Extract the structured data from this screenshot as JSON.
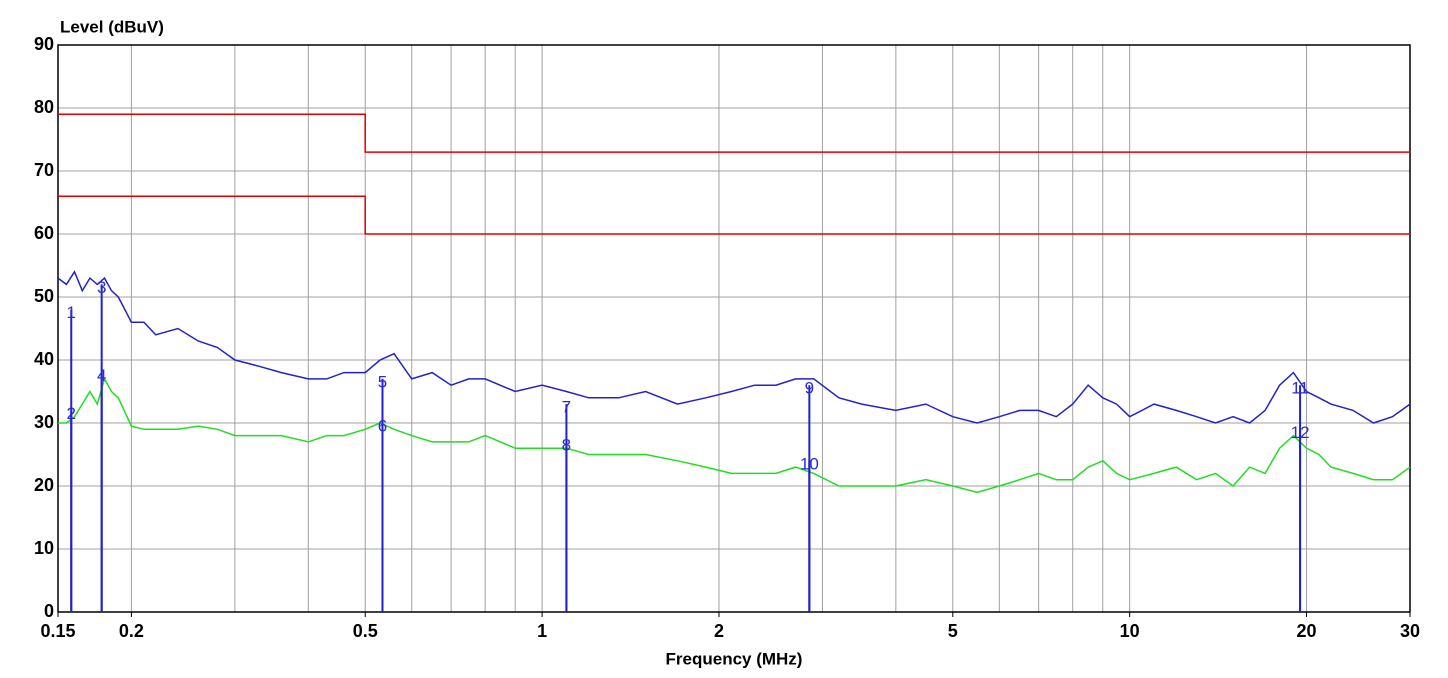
{
  "chart_data": {
    "type": "line",
    "y_label": "Level (dBuV)",
    "x_label": "Frequency (MHz)",
    "xscale": "log",
    "xlim": [
      0.15,
      30
    ],
    "ylim": [
      0,
      90
    ],
    "xticks": [
      0.15,
      0.2,
      0.5,
      1,
      2,
      5,
      10,
      20,
      30
    ],
    "yticks": [
      0,
      10,
      20,
      30,
      40,
      50,
      60,
      70,
      80,
      90
    ],
    "xgrid": [
      0.2,
      0.3,
      0.4,
      0.5,
      0.6,
      0.7,
      0.8,
      0.9,
      1,
      2,
      3,
      4,
      5,
      6,
      7,
      8,
      9,
      10,
      20
    ],
    "grid": true,
    "x": [
      0.15,
      0.155,
      0.16,
      0.165,
      0.17,
      0.175,
      0.18,
      0.185,
      0.19,
      0.2,
      0.21,
      0.22,
      0.24,
      0.26,
      0.28,
      0.3,
      0.33,
      0.36,
      0.4,
      0.43,
      0.46,
      0.5,
      0.53,
      0.56,
      0.6,
      0.65,
      0.7,
      0.75,
      0.8,
      0.9,
      1,
      1.1,
      1.2,
      1.35,
      1.5,
      1.7,
      1.9,
      2.1,
      2.3,
      2.5,
      2.7,
      2.9,
      3.2,
      3.5,
      4,
      4.5,
      5,
      5.5,
      6,
      6.5,
      7,
      7.5,
      8,
      8.5,
      9,
      9.5,
      10,
      11,
      12,
      13,
      14,
      15,
      16,
      17,
      18,
      19,
      20,
      21,
      22,
      24,
      26,
      28,
      30
    ],
    "series": [
      {
        "color": "#2222cc",
        "values": [
          53,
          52,
          54,
          51,
          53,
          52,
          53,
          51,
          50,
          46,
          46,
          44,
          45,
          43,
          42,
          40,
          39,
          38,
          37,
          37,
          38,
          38,
          40,
          41,
          37,
          38,
          36,
          37,
          37,
          35,
          36,
          35,
          34,
          34,
          35,
          33,
          34,
          35,
          36,
          36,
          37,
          37,
          34,
          33,
          32,
          33,
          31,
          30,
          31,
          32,
          32,
          31,
          33,
          36,
          34,
          33,
          31,
          33,
          32,
          31,
          30,
          31,
          30,
          32,
          36,
          38,
          35,
          34,
          33,
          32,
          30,
          31,
          33
        ]
      },
      {
        "color": "#22dd22",
        "values": [
          30,
          30,
          31,
          33,
          35,
          33,
          37,
          35,
          34,
          29.5,
          29,
          29,
          29,
          29.5,
          29,
          28,
          28,
          28,
          27,
          28,
          28,
          29,
          30,
          29,
          28,
          27,
          27,
          27,
          28,
          26,
          26,
          26,
          25,
          25,
          25,
          24,
          23,
          22,
          22,
          22,
          23,
          22,
          20,
          20,
          20,
          21,
          20,
          19,
          20,
          21,
          22,
          21,
          21,
          23,
          24,
          22,
          21,
          22,
          23,
          21,
          22,
          20,
          23,
          22,
          26,
          28,
          26,
          25,
          23,
          22,
          21,
          21,
          23
        ]
      }
    ],
    "limits": [
      {
        "color": "#e00000",
        "x": [
          0.15,
          0.5,
          0.5,
          30
        ],
        "values": [
          79,
          79,
          73,
          73
        ]
      },
      {
        "color": "#e00000",
        "x": [
          0.15,
          0.5,
          0.5,
          30
        ],
        "values": [
          66,
          66,
          60,
          60
        ]
      }
    ],
    "markers": [
      {
        "label": "1",
        "freq": 0.158,
        "level": 48
      },
      {
        "label": "2",
        "freq": 0.158,
        "level": 32
      },
      {
        "label": "3",
        "freq": 0.178,
        "level": 52
      },
      {
        "label": "4",
        "freq": 0.178,
        "level": 38
      },
      {
        "label": "5",
        "freq": 0.535,
        "level": 37
      },
      {
        "label": "6",
        "freq": 0.535,
        "level": 30
      },
      {
        "label": "7",
        "freq": 1.1,
        "level": 33
      },
      {
        "label": "8",
        "freq": 1.1,
        "level": 27
      },
      {
        "label": "9",
        "freq": 2.85,
        "level": 36
      },
      {
        "label": "10",
        "freq": 2.85,
        "level": 24
      },
      {
        "label": "11",
        "freq": 19.5,
        "level": 36
      },
      {
        "label": "12",
        "freq": 19.5,
        "level": 29
      }
    ]
  }
}
